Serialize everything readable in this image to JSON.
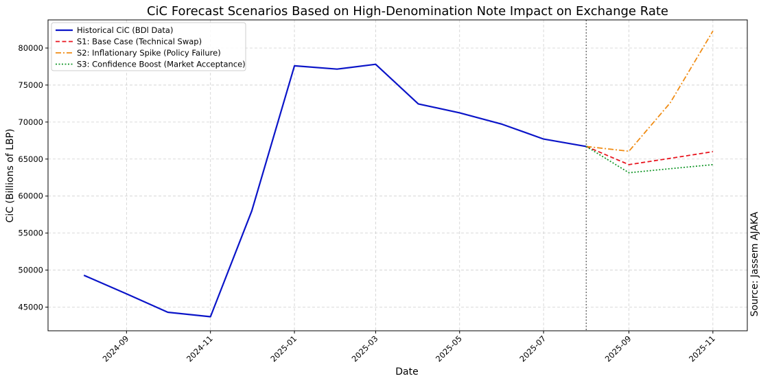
{
  "chart_data": {
    "type": "line",
    "title": "CiC Forecast Scenarios Based on High-Denomination Note Impact on Exchange Rate",
    "xlabel": "Date",
    "ylabel": "CiC (Billions of LBP)",
    "source_note": "Source: Jassem AJAKA",
    "grid": true,
    "legend_position": "top-left",
    "xlim": [
      "2024-07-06",
      "2025-11-26"
    ],
    "ylim": [
      41800,
      83800
    ],
    "y_ticks": [
      45000,
      50000,
      55000,
      60000,
      65000,
      70000,
      75000,
      80000
    ],
    "x_ticks": [
      "2024-09",
      "2024-11",
      "2025-01",
      "2025-03",
      "2025-05",
      "2025-07",
      "2025-09",
      "2025-11"
    ],
    "divider_date": "2025-08-01",
    "series": [
      {
        "name": "Historical CiC (BDl Data)",
        "color": "#0a14c8",
        "style": "solid",
        "x": [
          "2024-08-01",
          "2024-09-01",
          "2024-10-01",
          "2024-11-01",
          "2024-12-01",
          "2025-01-01",
          "2025-02-01",
          "2025-03-01",
          "2025-04-01",
          "2025-05-01",
          "2025-06-01",
          "2025-07-01",
          "2025-08-01"
        ],
        "values": [
          49300,
          46800,
          44300,
          43700,
          58000,
          77600,
          77150,
          77800,
          72450,
          71250,
          69700,
          67700,
          66700
        ]
      },
      {
        "name": "S1: Base Case (Technical Swap)",
        "color": "#e8141e",
        "style": "dashed",
        "x": [
          "2025-08-01",
          "2025-09-01",
          "2025-10-01",
          "2025-11-01"
        ],
        "values": [
          66700,
          64250,
          65100,
          66000
        ]
      },
      {
        "name": "S2: Inflationary Spike (Policy Failure)",
        "color": "#f08c14",
        "style": "dashdot",
        "x": [
          "2025-08-01",
          "2025-09-01",
          "2025-10-01",
          "2025-11-01"
        ],
        "values": [
          66700,
          66050,
          72600,
          82300
        ]
      },
      {
        "name": "S3: Confidence Boost (Market Acceptance)",
        "color": "#129628",
        "style": "dotted",
        "x": [
          "2025-08-01",
          "2025-09-01",
          "2025-10-01",
          "2025-11-01"
        ],
        "values": [
          66700,
          63150,
          63700,
          64250
        ]
      }
    ]
  }
}
